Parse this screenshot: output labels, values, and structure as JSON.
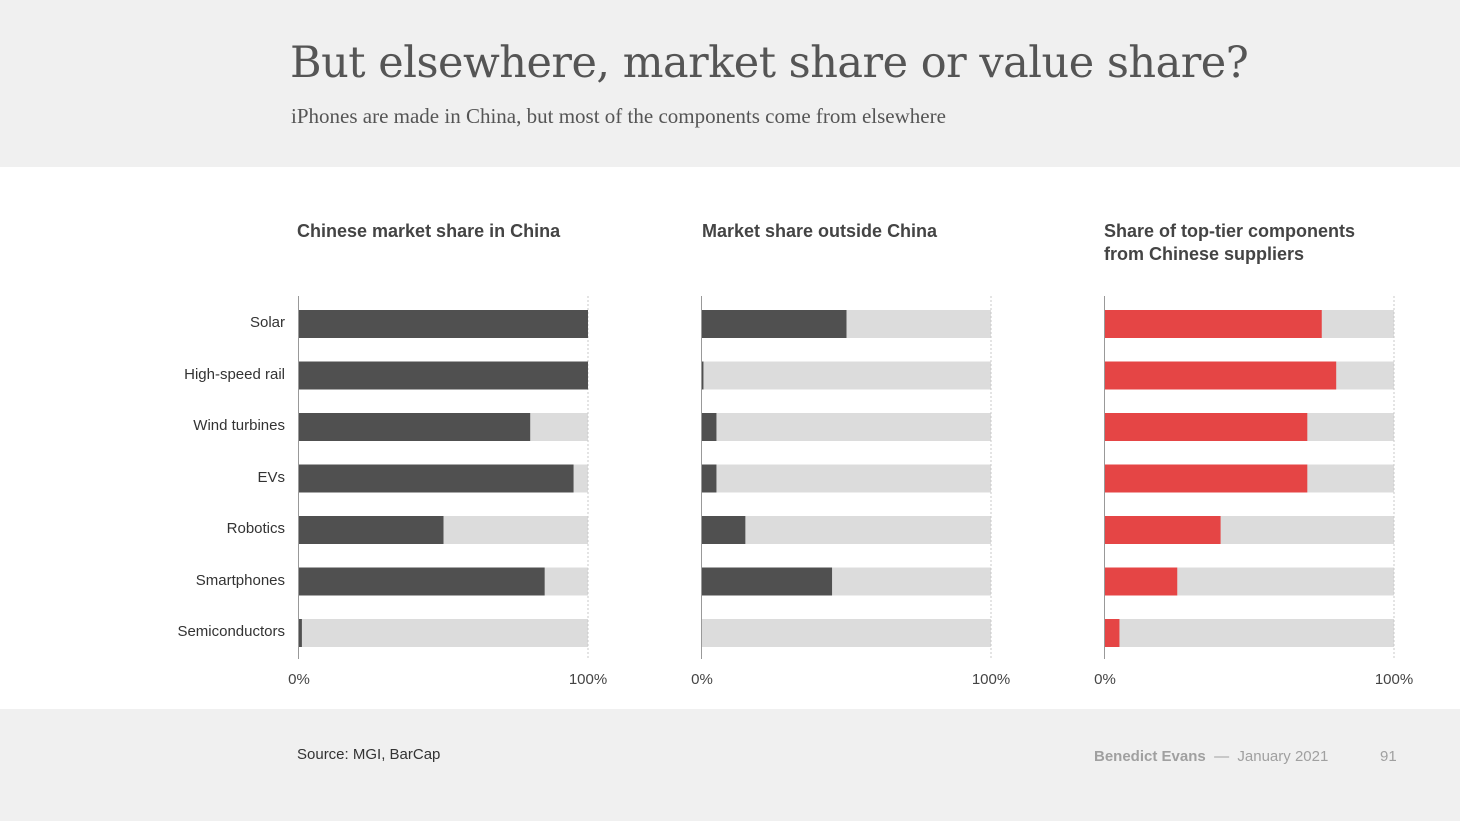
{
  "title": "But elsewhere, market share or value share?",
  "subtitle": "iPhones are made in China, but most of the components come from elsewhere",
  "footer": {
    "source": "Source: MGI, BarCap",
    "author": "Benedict Evans",
    "separator": "—",
    "date": "January 2021",
    "page": "91"
  },
  "colors": {
    "dark": "#505050",
    "red": "#e54545",
    "track": "#dcdcdc",
    "axis": "#999999"
  },
  "chart_data": [
    {
      "type": "bar",
      "orientation": "horizontal",
      "title": "Chinese market share in China",
      "categories": [
        "Solar",
        "High-speed rail",
        "Wind turbines",
        "EVs",
        "Robotics",
        "Smartphones",
        "Semiconductors"
      ],
      "values": [
        100,
        100,
        80,
        95,
        50,
        85,
        1
      ],
      "xlim": [
        0,
        100
      ],
      "tick_labels": [
        "0%",
        "100%"
      ],
      "color": "dark"
    },
    {
      "type": "bar",
      "orientation": "horizontal",
      "title": "Market share outside China",
      "categories": [
        "Solar",
        "High-speed rail",
        "Wind turbines",
        "EVs",
        "Robotics",
        "Smartphones",
        "Semiconductors"
      ],
      "values": [
        50,
        0.5,
        5,
        5,
        15,
        45,
        0
      ],
      "xlim": [
        0,
        100
      ],
      "tick_labels": [
        "0%",
        "100%"
      ],
      "color": "dark"
    },
    {
      "type": "bar",
      "orientation": "horizontal",
      "title": "Share of top-tier components from Chinese suppliers",
      "categories": [
        "Solar",
        "High-speed rail",
        "Wind turbines",
        "EVs",
        "Robotics",
        "Smartphones",
        "Semiconductors"
      ],
      "values": [
        75,
        80,
        70,
        70,
        40,
        25,
        5
      ],
      "xlim": [
        0,
        100
      ],
      "tick_labels": [
        "0%",
        "100%"
      ],
      "color": "red"
    }
  ]
}
